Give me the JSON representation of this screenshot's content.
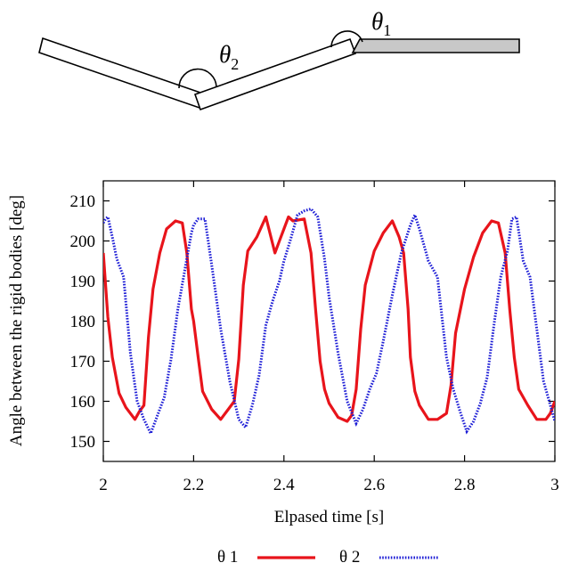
{
  "diagram": {
    "theta1_symbol": "θ",
    "theta1_subscript": "1",
    "theta2_symbol": "θ",
    "theta2_subscript": "2"
  },
  "colors": {
    "theta1": "#e8141b",
    "theta2": "#1e1ed6",
    "link_fill": "#ffffff",
    "fixed_link_fill": "#c8c8c8"
  },
  "chart_data": {
    "type": "line",
    "xlabel": "Elpased time [s]",
    "ylabel": "Angle between the rigid bodies [deg]",
    "xlim": [
      2,
      3
    ],
    "ylim": [
      145,
      215
    ],
    "xticks": [
      2,
      2.2,
      2.4,
      2.6,
      2.8,
      3
    ],
    "xtick_labels": [
      "2",
      "2.2",
      "2.4",
      "2.6",
      "2.8",
      "3"
    ],
    "yticks": [
      150,
      160,
      170,
      180,
      190,
      200,
      210
    ],
    "ytick_labels": [
      "150",
      "160",
      "170",
      "180",
      "190",
      "200",
      "210"
    ],
    "grid": false,
    "legend_position": "bottom-center",
    "series": [
      {
        "name": "θ 1",
        "style": "solid",
        "x": [
          2.0,
          2.01,
          2.02,
          2.035,
          2.05,
          2.07,
          2.08,
          2.09,
          2.1,
          2.11,
          2.125,
          2.14,
          2.16,
          2.175,
          2.185,
          2.195,
          2.2,
          2.21,
          2.22,
          2.24,
          2.26,
          2.29,
          2.3,
          2.31,
          2.32,
          2.34,
          2.36,
          2.38,
          2.39,
          2.4,
          2.41,
          2.42,
          2.445,
          2.46,
          2.47,
          2.48,
          2.49,
          2.5,
          2.52,
          2.54,
          2.55,
          2.56,
          2.57,
          2.58,
          2.6,
          2.62,
          2.64,
          2.655,
          2.665,
          2.675,
          2.68,
          2.69,
          2.7,
          2.72,
          2.74,
          2.76,
          2.77,
          2.78,
          2.8,
          2.82,
          2.84,
          2.86,
          2.875,
          2.89,
          2.9,
          2.91,
          2.92,
          2.94,
          2.96,
          2.98,
          2.99,
          3.0
        ],
        "y": [
          197,
          181,
          171,
          162,
          158.5,
          155.5,
          157.5,
          159,
          176,
          188,
          197,
          203,
          205,
          204.5,
          197,
          183,
          180,
          171,
          162.5,
          158,
          155.5,
          160,
          170.5,
          189,
          197.5,
          201,
          206,
          197,
          200,
          203,
          206,
          205,
          205.5,
          197,
          183,
          170,
          163,
          159.5,
          156,
          155,
          156.5,
          163,
          178,
          189,
          197.5,
          202,
          205,
          201,
          197,
          183,
          171,
          162.5,
          159,
          155.5,
          155.5,
          157,
          164,
          177,
          188,
          196,
          202,
          205,
          204.5,
          197,
          183,
          171,
          163,
          159,
          155.5,
          155.5,
          157,
          160
        ]
      },
      {
        "name": "θ 2",
        "style": "dotted",
        "x": [
          2.0,
          2.005,
          2.01,
          2.02,
          2.03,
          2.045,
          2.06,
          2.075,
          2.09,
          2.105,
          2.12,
          2.135,
          2.15,
          2.165,
          2.18,
          2.195,
          2.2,
          2.21,
          2.225,
          2.24,
          2.26,
          2.28,
          2.3,
          2.315,
          2.33,
          2.345,
          2.36,
          2.375,
          2.39,
          2.4,
          2.415,
          2.43,
          2.445,
          2.46,
          2.475,
          2.49,
          2.5,
          2.52,
          2.54,
          2.56,
          2.575,
          2.59,
          2.605,
          2.62,
          2.64,
          2.66,
          2.68,
          2.69,
          2.7,
          2.72,
          2.74,
          2.76,
          2.775,
          2.79,
          2.805,
          2.82,
          2.835,
          2.85,
          2.865,
          2.88,
          2.895,
          2.905,
          2.915,
          2.93,
          2.945,
          2.96,
          2.975,
          2.99,
          3.0
        ],
        "y": [
          204.5,
          205.5,
          206,
          201,
          195.5,
          191,
          172,
          160,
          155.5,
          152,
          156.5,
          161,
          170.5,
          183,
          192.5,
          202,
          204,
          205.5,
          205.5,
          194,
          178,
          165,
          155.5,
          153.5,
          159,
          166.5,
          179,
          185,
          190,
          195,
          200.5,
          206.5,
          207.5,
          208,
          206,
          195.5,
          186,
          172,
          160,
          154.5,
          158,
          163,
          167,
          175,
          186.5,
          197,
          204,
          206.5,
          203,
          195,
          191,
          171,
          163,
          157.5,
          152.5,
          155,
          159.5,
          166,
          179,
          191,
          197.5,
          205.5,
          206,
          195,
          191,
          178,
          165,
          159,
          155
        ]
      }
    ]
  }
}
